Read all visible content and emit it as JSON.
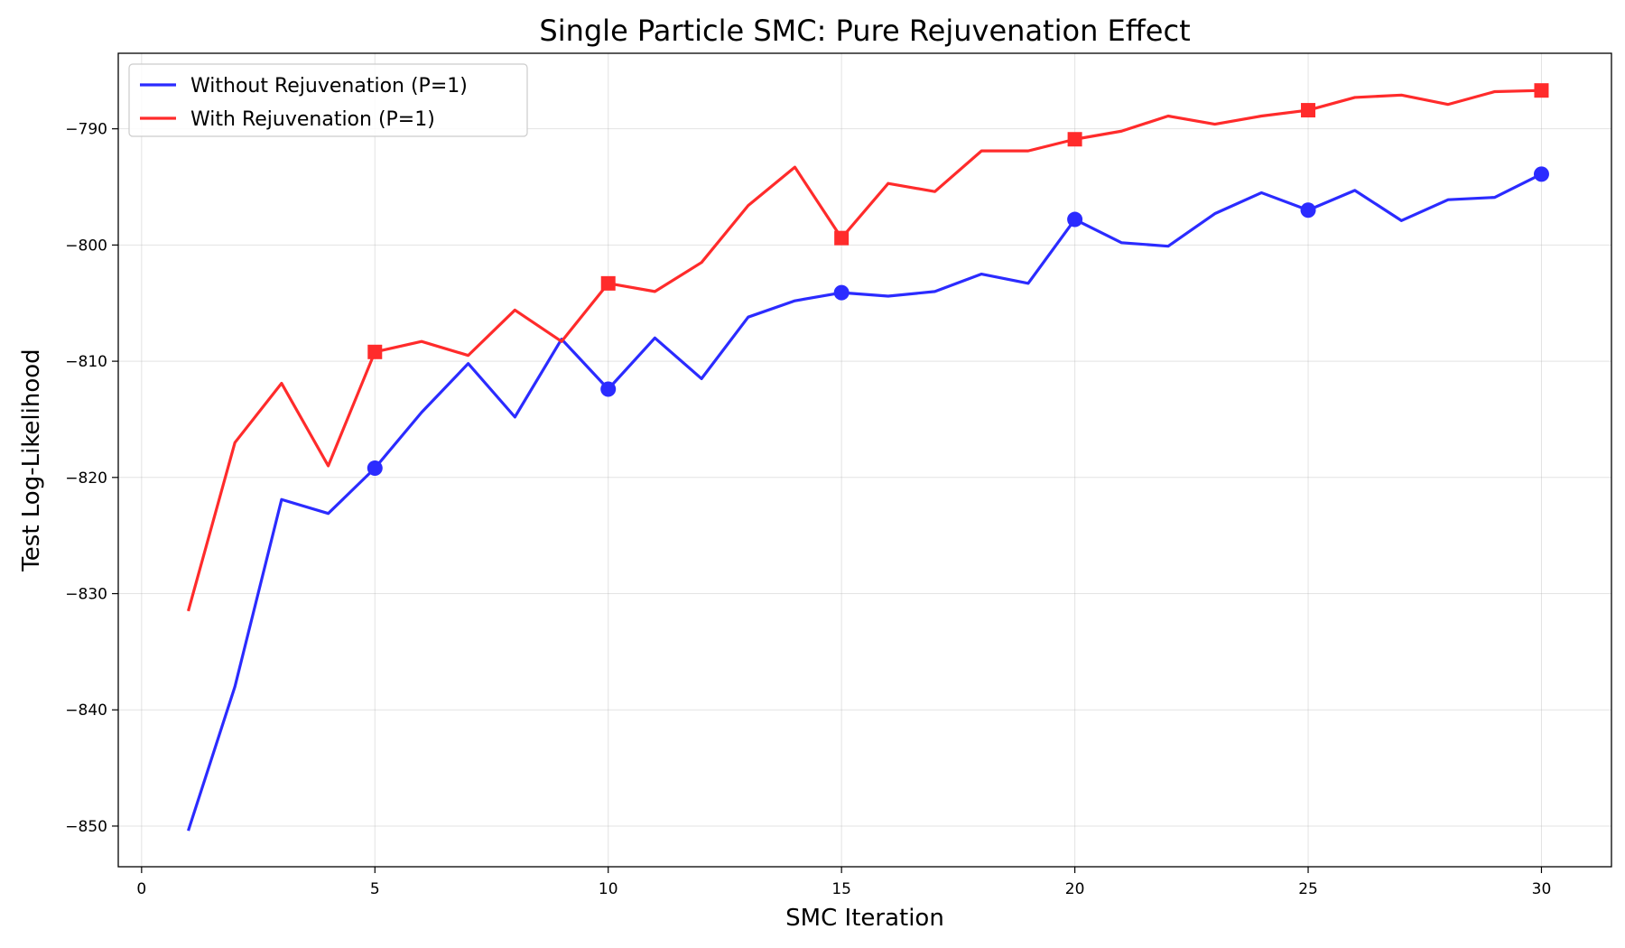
{
  "chart_data": {
    "type": "line",
    "title": "Single Particle SMC: Pure Rejuvenation Effect",
    "xlabel": "SMC Iteration",
    "ylabel": "Test Log-Likelihood",
    "xlim": [
      -0.5,
      31.5
    ],
    "ylim": [
      -853.5,
      -783.5
    ],
    "xticks": [
      0,
      5,
      10,
      15,
      20,
      25,
      30
    ],
    "yticks": [
      -850,
      -840,
      -830,
      -820,
      -810,
      -800,
      -790
    ],
    "grid": true,
    "legend_position": "top-left",
    "x": [
      1,
      2,
      3,
      4,
      5,
      6,
      7,
      8,
      9,
      10,
      11,
      12,
      13,
      14,
      15,
      16,
      17,
      18,
      19,
      20,
      21,
      22,
      23,
      24,
      25,
      26,
      27,
      28,
      29,
      30
    ],
    "series": [
      {
        "name": "Without Rejuvenation (P=1)",
        "color": "#2b2bff",
        "marker": "circle",
        "marker_every": [
          5,
          10,
          15,
          20,
          25,
          30
        ],
        "values": [
          -850.4,
          -838.0,
          -821.9,
          -823.1,
          -819.2,
          -814.4,
          -810.2,
          -814.8,
          -808.1,
          -812.4,
          -808.0,
          -811.5,
          -806.2,
          -804.8,
          -804.1,
          -804.4,
          -804.0,
          -802.5,
          -803.3,
          -797.8,
          -799.8,
          -800.1,
          -797.3,
          -795.5,
          -797.0,
          -795.3,
          -797.9,
          -796.1,
          -795.9,
          -793.9
        ]
      },
      {
        "name": "With Rejuvenation (P=1)",
        "color": "#ff2b2b",
        "marker": "square",
        "marker_every": [
          5,
          10,
          15,
          20,
          25,
          30
        ],
        "values": [
          -831.5,
          -817.0,
          -811.9,
          -819.0,
          -809.2,
          -808.3,
          -809.5,
          -805.6,
          -808.3,
          -803.3,
          -804.0,
          -801.5,
          -796.6,
          -793.3,
          -799.4,
          -794.7,
          -795.4,
          -791.9,
          -791.9,
          -790.9,
          -790.2,
          -788.9,
          -789.6,
          -788.9,
          -788.4,
          -787.3,
          -787.1,
          -787.9,
          -786.8,
          -786.7
        ]
      }
    ]
  }
}
